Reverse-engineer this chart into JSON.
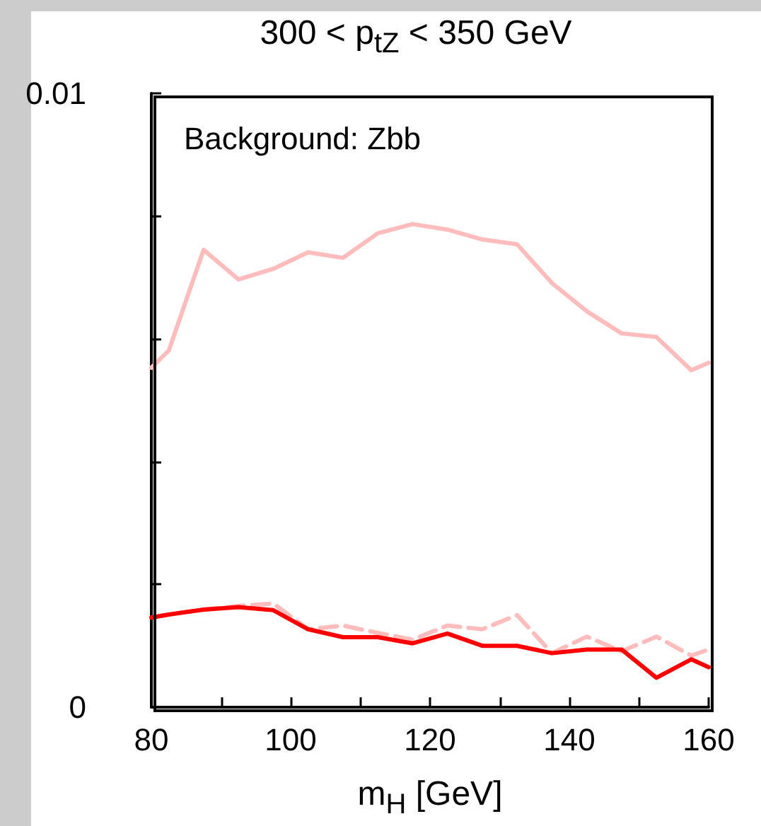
{
  "chart_data": {
    "type": "line",
    "title": "300 < p$_{tZ}$ < 350 GeV",
    "xlabel": "m$_{H}$ [GeV]",
    "annotations": [
      "Background: Zbb"
    ],
    "x": [
      80,
      82.5,
      87.5,
      92.5,
      97.5,
      102.5,
      107.5,
      112.5,
      117.5,
      122.5,
      127.5,
      132.5,
      137.5,
      142.5,
      147.5,
      152.5,
      157.5,
      160
    ],
    "series": [
      {
        "color": "#ffbcbc",
        "line_style": "solid",
        "values": [
          0.00553,
          0.00581,
          0.00745,
          0.00697,
          0.00714,
          0.00741,
          0.00732,
          0.00772,
          0.00787,
          0.00778,
          0.00762,
          0.00754,
          0.00691,
          0.00645,
          0.00609,
          0.00603,
          0.00549,
          0.00561
        ]
      },
      {
        "color": "#ffbcbc",
        "line_style": "dashed",
        "values": [
          0.00146,
          0.00151,
          0.00159,
          0.00165,
          0.00169,
          0.00127,
          0.00133,
          0.00121,
          0.0011,
          0.00133,
          0.00127,
          0.0015,
          0.00088,
          0.00115,
          0.00091,
          0.00115,
          0.00084,
          0.00094
        ]
      },
      {
        "color": "#ff0000",
        "line_style": "solid",
        "values": [
          0.00146,
          0.00151,
          0.00159,
          0.00163,
          0.00158,
          0.00127,
          0.00114,
          0.00114,
          0.00104,
          0.0012,
          0.001,
          0.001,
          0.00088,
          0.00094,
          0.00094,
          0.00048,
          0.00078,
          0.00065
        ]
      }
    ],
    "xlim": [
      80,
      160
    ],
    "xticks": [
      80,
      {
        "value": 90,
        "label": null
      },
      100,
      {
        "value": 110,
        "label": null
      },
      120,
      {
        "value": 130,
        "label": null
      },
      140,
      {
        "value": 150,
        "label": null
      },
      160
    ],
    "ylim": [
      0,
      0.01
    ],
    "yticks": [
      0,
      {
        "value": 0.002,
        "label": null
      },
      {
        "value": 0.004,
        "label": null
      },
      {
        "value": 0.006,
        "label": null
      },
      {
        "value": 0.008,
        "label": null
      },
      0.01
    ],
    "grid": false,
    "marker": "none"
  }
}
